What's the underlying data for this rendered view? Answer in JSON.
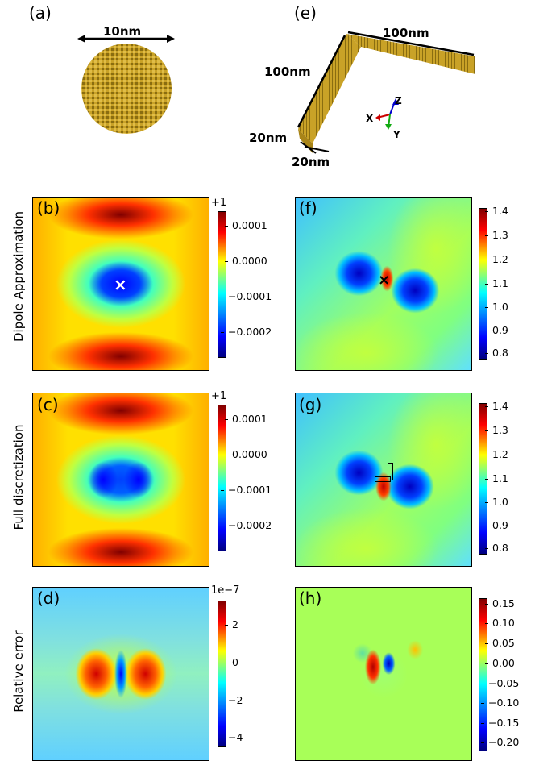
{
  "labels": {
    "a": "(a)",
    "b": "(b)",
    "c": "(c)",
    "d": "(d)",
    "e": "(e)",
    "f": "(f)",
    "g": "(g)",
    "h": "(h)"
  },
  "dims": {
    "sphere": "10nm",
    "arm_h": "100nm",
    "arm_v": "100nm",
    "thick1": "20nm",
    "thick2": "20nm"
  },
  "axes": {
    "x": "X",
    "y": "Y",
    "z": "Z"
  },
  "rows": {
    "r1": "Dipole Approximation",
    "r2": "Full discretization",
    "r3": "Relative error"
  },
  "cb_left": {
    "offset": "+1",
    "ticks": [
      "0.0001",
      "0.0000",
      "−0.0001",
      "−0.0002"
    ]
  },
  "cb_left2": {
    "offset": "+1",
    "ticks": [
      "0.0001",
      "0.0000",
      "−0.0001",
      "−0.0002"
    ]
  },
  "cb_err": {
    "offset": "1e−7",
    "ticks": [
      "2",
      "0",
      "−2",
      "−4"
    ]
  },
  "cb_right": {
    "ticks": [
      "1.4",
      "1.3",
      "1.2",
      "1.1",
      "1.0",
      "0.9",
      "0.8"
    ]
  },
  "cb_right2": {
    "ticks": [
      "1.4",
      "1.3",
      "1.2",
      "1.1",
      "1.0",
      "0.9",
      "0.8"
    ]
  },
  "cb_h": {
    "ticks": [
      "0.15",
      "0.10",
      "0.05",
      "0.00",
      "−0.05",
      "−0.10",
      "−0.15",
      "−0.20"
    ]
  },
  "colors": {
    "jet_dark_red": "#800000",
    "jet_red": "#ff0000",
    "jet_yellow": "#ffff00",
    "jet_cyan": "#00ffff",
    "jet_blue": "#0000ff",
    "jet_dark_blue": "#00007f",
    "gold": "#c9a227"
  }
}
